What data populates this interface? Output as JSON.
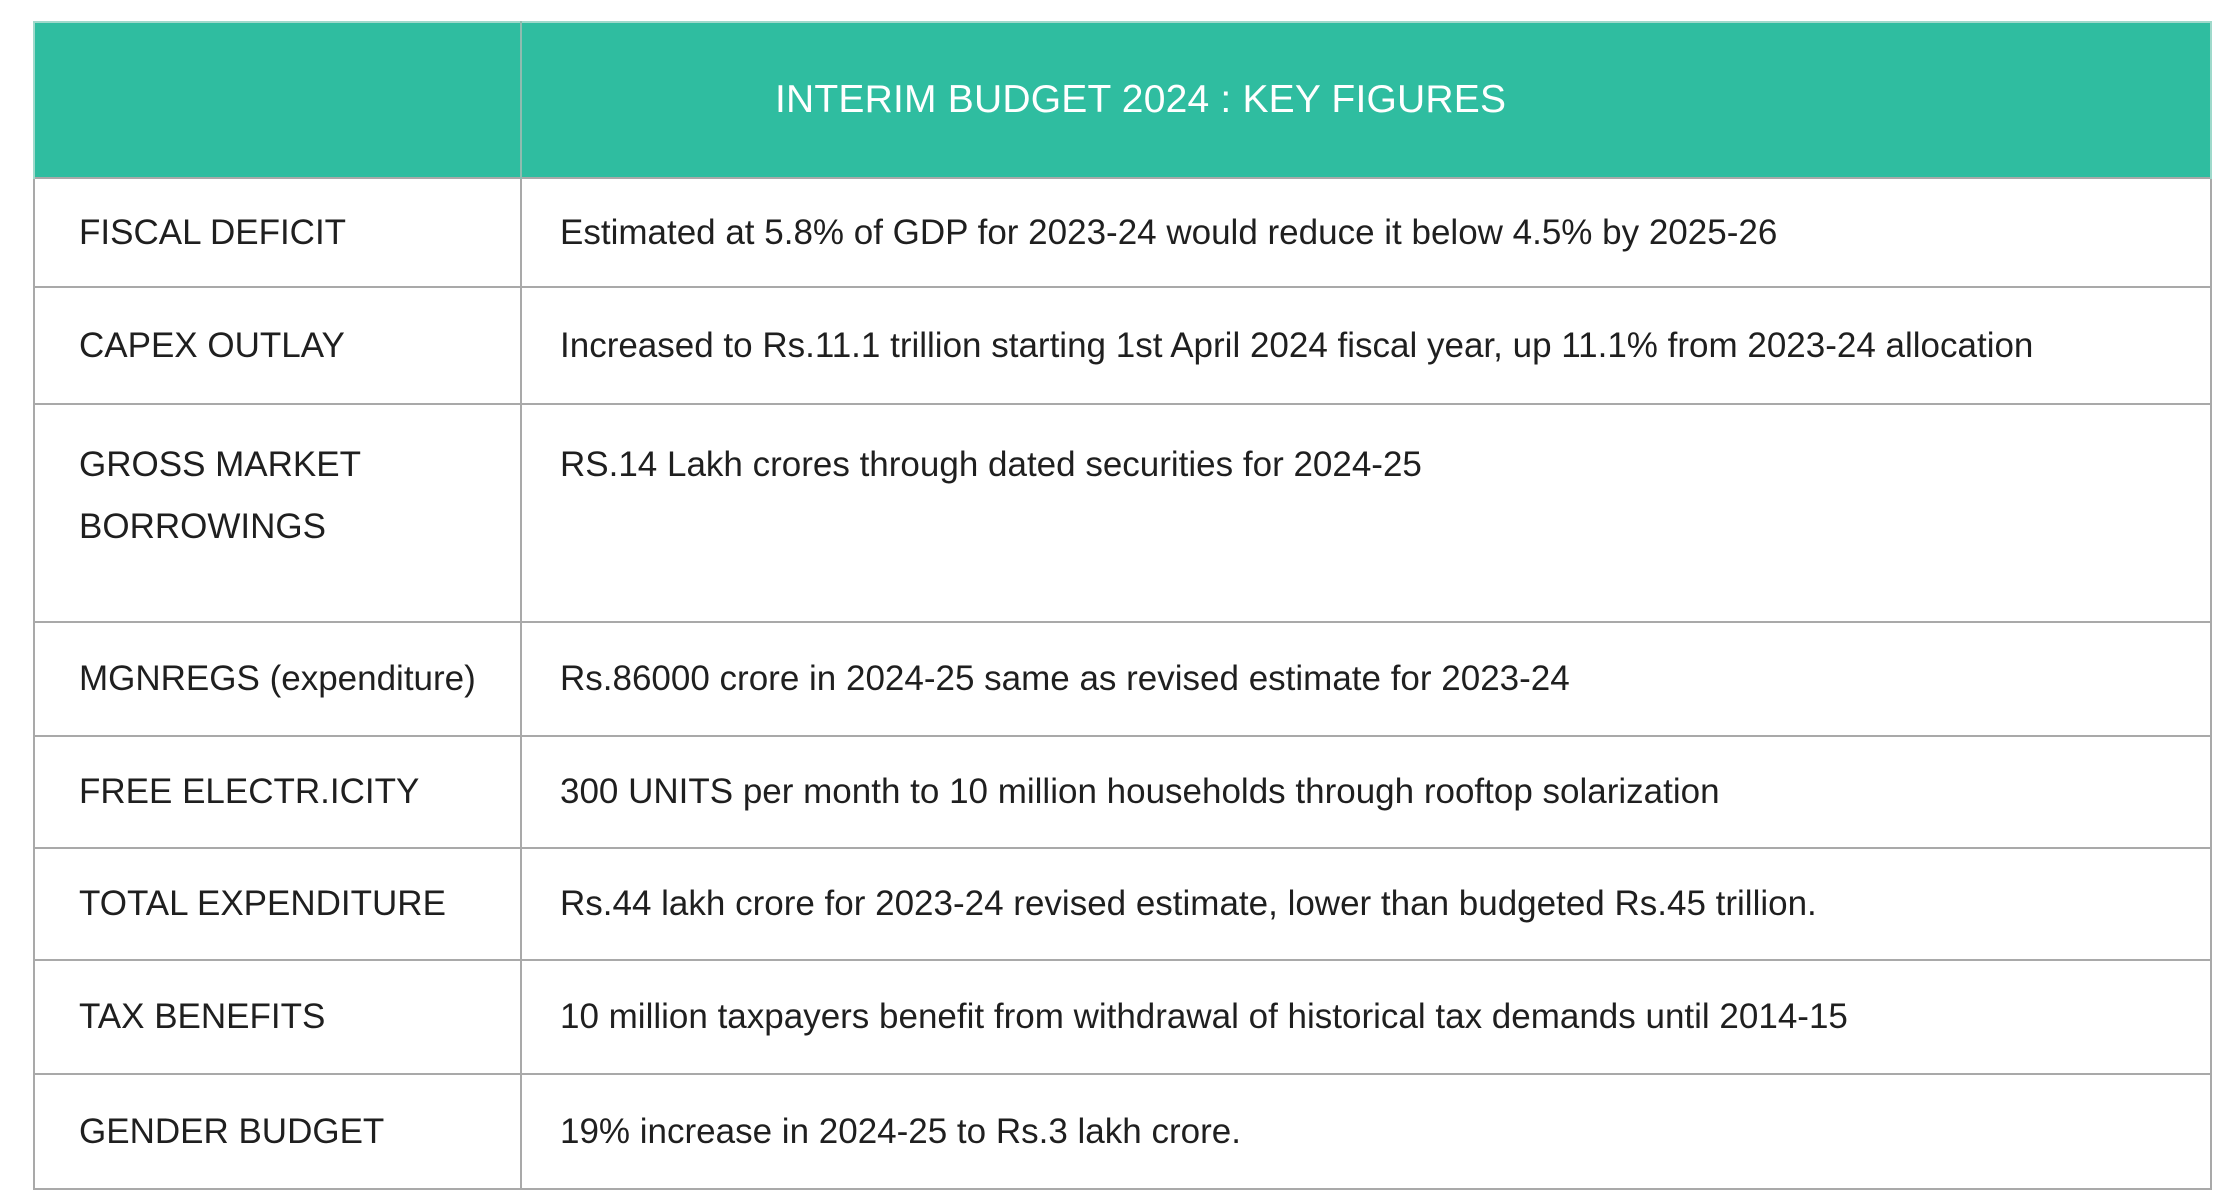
{
  "table": {
    "title": "INTERIM BUDGET 2024 : KEY FIGURES",
    "rows": [
      {
        "label": "FISCAL DEFICIT",
        "value": "Estimated at 5.8% of GDP for 2023-24 would reduce it below 4.5% by 2025-26"
      },
      {
        "label": "CAPEX OUTLAY",
        "value": "Increased to Rs.11.1 trillion starting 1st April 2024 fiscal year, up 11.1% from 2023-24 allocation"
      },
      {
        "label": "GROSS MARKET BORROWINGS",
        "value": "RS.14 Lakh crores through dated securities for 2024-25"
      },
      {
        "label": "MGNREGS (expenditure)",
        "value": "Rs.86000 crore in 2024-25 same as revised estimate for 2023-24"
      },
      {
        "label": "FREE ELECTR.ICITY",
        "value": "300 UNITS per month to 10 million households through rooftop solarization"
      },
      {
        "label": "TOTAL EXPENDITURE",
        "value": "Rs.44 lakh crore for 2023-24 revised estimate, lower than budgeted Rs.45 trillion."
      },
      {
        "label": "TAX BENEFITS",
        "value": "10 million taxpayers benefit from withdrawal of historical tax demands until 2014-15"
      },
      {
        "label": "GENDER BUDGET",
        "value": "19% increase in 2024-25 to Rs.3 lakh crore."
      }
    ]
  },
  "colors": {
    "header_background": "#2fbda0",
    "header_text": "#ffffff",
    "border": "#a9a9a9",
    "body_text": "#1f1f1f"
  }
}
